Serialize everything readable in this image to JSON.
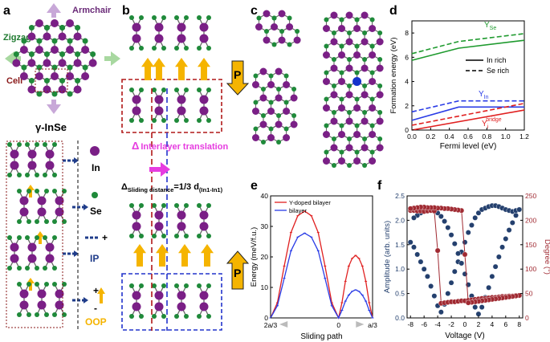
{
  "panels": {
    "a": {
      "letter": "a",
      "armchair": "Armchair",
      "zigzag": "Zigzag",
      "cell": "Cell",
      "title": "γ-InSe",
      "legend": {
        "in": "In",
        "se": "Se",
        "ip": "IP",
        "oop": "OOP"
      }
    },
    "b": {
      "letter": "b",
      "p_label": "P",
      "translation_label": "Interlayer translation",
      "delta_symbol": "Δ",
      "sliding_prefix": "Δ",
      "sliding_sub": "Sliding distance",
      "sliding_eq": "=1/3 d",
      "sliding_sub2": "(In1-In1)"
    },
    "c": {
      "letter": "c"
    },
    "d": {
      "letter": "d"
    },
    "e": {
      "letter": "e"
    },
    "f": {
      "letter": "f"
    }
  },
  "colors": {
    "in_atom": "#7a1f86",
    "se_atom": "#1f8a3a",
    "y_atom": "#1432cc",
    "oop_arrow": "#f5b400",
    "ip_arrow": "#1f3c8a",
    "red_box": "#b01818",
    "blue_box": "#2233cc",
    "magenta": "#e63ce0",
    "green_line": "#1e9a2e",
    "blue_line": "#2a3ce6",
    "red_line": "#e02020",
    "f_amp": "#24406e",
    "f_deg": "#a02a32"
  },
  "chart_data": [
    {
      "panel": "d",
      "type": "line",
      "xlabel": "Fermi level (eV)",
      "ylabel": "Formation energy (eV)",
      "xlim": [
        0,
        1.2
      ],
      "ylim": [
        0,
        9
      ],
      "xticks": [
        "0.0",
        "0.2",
        "0.4",
        "0.6",
        "0.8",
        "1.0",
        "1.2"
      ],
      "yticks": [
        "0",
        "2",
        "4",
        "6",
        "8"
      ],
      "legend": {
        "solid": "In rich",
        "dashed": "Se rich",
        "position": "top-right"
      },
      "series": [
        {
          "name": "Y_Se",
          "label_main": "Y",
          "label_sub": "Se",
          "style": "solid",
          "color": "green",
          "x": [
            0,
            0.5,
            1.2
          ],
          "y": [
            5.75,
            6.75,
            7.4
          ]
        },
        {
          "name": "Y_Se",
          "label_main": "Y",
          "label_sub": "Se",
          "style": "dashed",
          "color": "green",
          "x": [
            0,
            0.5,
            1.2
          ],
          "y": [
            6.3,
            7.3,
            7.95
          ]
        },
        {
          "name": "Y_In",
          "label_main": "Y",
          "label_sub": "In",
          "style": "solid",
          "color": "blue",
          "x": [
            0,
            0.5,
            1.2
          ],
          "y": [
            0.8,
            1.9,
            1.9
          ]
        },
        {
          "name": "Y_In",
          "label_main": "Y",
          "label_sub": "In",
          "style": "dashed",
          "color": "blue",
          "x": [
            0,
            0.5,
            1.2
          ],
          "y": [
            1.5,
            2.4,
            2.4
          ]
        },
        {
          "name": "Y_i^bridge",
          "label_main": "Y",
          "label_sub": "i",
          "label_sup": "bridge",
          "style": "solid",
          "color": "red",
          "x": [
            0,
            1.2
          ],
          "y": [
            -0.1,
            1.65
          ]
        },
        {
          "name": "Y_i^bridge",
          "label_main": "Y",
          "label_sub": "i",
          "label_sup": "bridge",
          "style": "dashed",
          "color": "red",
          "x": [
            0,
            1.2
          ],
          "y": [
            0.4,
            2.2
          ]
        }
      ]
    },
    {
      "panel": "e",
      "type": "line",
      "xlabel": "Sliding path",
      "ylabel": "Energy (meV/f.u.)",
      "ylim": [
        0,
        40
      ],
      "yticks": [
        "0",
        "10",
        "20",
        "30",
        "40"
      ],
      "xticklabels": [
        "2a/3",
        "0",
        "a/3"
      ],
      "legend": {
        "position": "top-left"
      },
      "series": [
        {
          "name": "Y-doped bilayer",
          "color": "red",
          "x": [
            -0.667,
            -0.6,
            -0.533,
            -0.467,
            -0.4,
            -0.333,
            -0.267,
            -0.2,
            -0.133,
            -0.067,
            0,
            0.033,
            0.067,
            0.1,
            0.133,
            0.167,
            0.2,
            0.233,
            0.267,
            0.3,
            0.333
          ],
          "y": [
            0,
            5,
            17,
            28,
            33.5,
            35,
            33.5,
            28,
            17,
            5,
            0,
            5,
            12,
            17,
            19.5,
            20.5,
            19.5,
            17,
            12,
            5,
            0
          ]
        },
        {
          "name": "bilayer",
          "color": "blue",
          "x": [
            -0.667,
            -0.6,
            -0.533,
            -0.467,
            -0.4,
            -0.333,
            -0.267,
            -0.2,
            -0.133,
            -0.067,
            0,
            0.033,
            0.067,
            0.1,
            0.133,
            0.167,
            0.2,
            0.233,
            0.267,
            0.3,
            0.333
          ],
          "y": [
            0,
            4,
            13,
            22,
            26.5,
            27.8,
            26.5,
            22,
            13,
            4,
            0,
            2.5,
            5.5,
            7.5,
            8.7,
            9.2,
            8.7,
            7.5,
            5.5,
            2.5,
            0
          ]
        }
      ]
    },
    {
      "panel": "f",
      "type": "scatter",
      "xlabel": "Voltage (V)",
      "ylabel": "Amplitude (arb. units)",
      "ylabel_right": "Degree (°)",
      "xlim": [
        -8.5,
        8.5
      ],
      "ylim": [
        0,
        2.5
      ],
      "ylim_right": [
        0,
        250
      ],
      "xticks": [
        "-8",
        "-6",
        "-4",
        "-2",
        "0",
        "2",
        "4",
        "6",
        "8"
      ],
      "yticks": [
        "0.0",
        "0.5",
        "1.0",
        "1.5",
        "2.0",
        "2.5"
      ],
      "yticks_right": [
        "0",
        "50",
        "100",
        "150",
        "200",
        "250"
      ],
      "series": [
        {
          "name": "Amplitude",
          "axis": "left",
          "color": "navy",
          "x": [
            -8,
            -7.5,
            -7,
            -6.5,
            -6,
            -5.5,
            -5,
            -4.5,
            -4,
            -3.5,
            -3,
            -2.5,
            -2,
            -1.5,
            -1,
            -0.5,
            0,
            0.5,
            1,
            1.5,
            2,
            2.5,
            3,
            3.5,
            4,
            4.5,
            5,
            5.5,
            6,
            6.5,
            7,
            7.5,
            8
          ],
          "y": [
            1.55,
            1.45,
            1.3,
            1.15,
            1.0,
            0.85,
            0.65,
            0.45,
            0.25,
            0.12,
            0.28,
            0.5,
            0.72,
            0.95,
            1.15,
            1.35,
            1.55,
            1.75,
            1.9,
            2.05,
            2.15,
            2.22,
            2.25,
            2.28,
            2.3,
            2.3,
            2.28,
            2.25,
            2.22,
            2.2,
            2.18,
            2.2,
            2.22
          ]
        },
        {
          "name": "Amplitude",
          "axis": "left",
          "color": "navy",
          "x": [
            8,
            7.5,
            7,
            6.5,
            6,
            5.5,
            5,
            4.5,
            4,
            3.5,
            3,
            2.5,
            2,
            1.5,
            1,
            0.5,
            0,
            -0.5,
            -1,
            -1.5,
            -2,
            -2.5,
            -3,
            -3.5,
            -4,
            -4.5,
            -5,
            -5.5,
            -6,
            -6.5,
            -7,
            -7.5,
            -8
          ],
          "y": [
            2.22,
            2.1,
            1.95,
            1.8,
            1.62,
            1.45,
            1.25,
            1.05,
            0.85,
            0.62,
            0.42,
            0.22,
            0.08,
            0.22,
            0.45,
            0.68,
            0.9,
            1.12,
            1.32,
            1.52,
            1.7,
            1.85,
            1.98,
            2.08,
            2.15,
            2.2,
            2.22,
            2.23,
            2.2,
            2.15,
            2.1,
            2.05,
            1.55
          ]
        },
        {
          "name": "Degree",
          "axis": "right",
          "color": "maroon",
          "x": [
            -8,
            -7.5,
            -7,
            -6.5,
            -6,
            -5.5,
            -5,
            -4.5,
            -4,
            -3.5,
            -3,
            -2.5,
            -2,
            -1.5,
            -1,
            -0.5,
            0,
            0.5,
            1,
            1.5,
            2,
            2.5,
            3,
            3.5,
            4,
            4.5,
            5,
            5.5,
            6,
            6.5,
            7,
            7.5,
            8
          ],
          "y": [
            220,
            220,
            219,
            219,
            218,
            219,
            220,
            219,
            138,
            30,
            31,
            32,
            33,
            33,
            34,
            35,
            35,
            36,
            37,
            38,
            39,
            40,
            40,
            41,
            42,
            42,
            43,
            44,
            44,
            45,
            45,
            46,
            46
          ]
        },
        {
          "name": "Degree",
          "axis": "right",
          "color": "maroon",
          "x": [
            8,
            7.5,
            7,
            6.5,
            6,
            5.5,
            5,
            4.5,
            4,
            3.5,
            3,
            2.5,
            2,
            1.5,
            1,
            0.5,
            0,
            -0.5,
            -1,
            -1.5,
            -2,
            -2.5,
            -3,
            -3.5,
            -4,
            -4.5,
            -5,
            -5.5,
            -6,
            -6.5,
            -7,
            -7.5,
            -8
          ],
          "y": [
            46,
            45,
            44,
            43,
            42,
            41,
            40,
            39,
            38,
            37,
            36,
            35,
            34,
            33,
            32,
            31,
            130,
            220,
            221,
            222,
            223,
            224,
            224,
            225,
            225,
            226,
            226,
            226,
            227,
            227,
            226,
            225,
            224
          ]
        }
      ]
    }
  ]
}
